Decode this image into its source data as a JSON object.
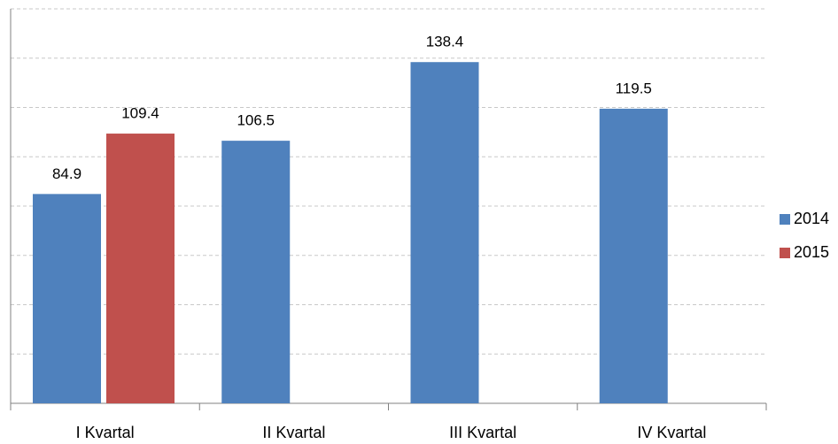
{
  "chart_data": {
    "type": "bar",
    "categories": [
      "I Kvartal",
      "II Kvartal",
      "III Kvartal",
      "IV Kvartal"
    ],
    "series": [
      {
        "name": "2014",
        "color": "#4f81bd",
        "values": [
          84.9,
          106.5,
          138.4,
          119.5
        ]
      },
      {
        "name": "2015",
        "color": "#c0504d",
        "values": [
          109.4,
          null,
          null,
          null
        ]
      }
    ],
    "ylim": [
      0,
      160
    ],
    "yticks": [
      0,
      20,
      40,
      60,
      80,
      100,
      120,
      140,
      160
    ],
    "grid": true,
    "legend": "right"
  }
}
